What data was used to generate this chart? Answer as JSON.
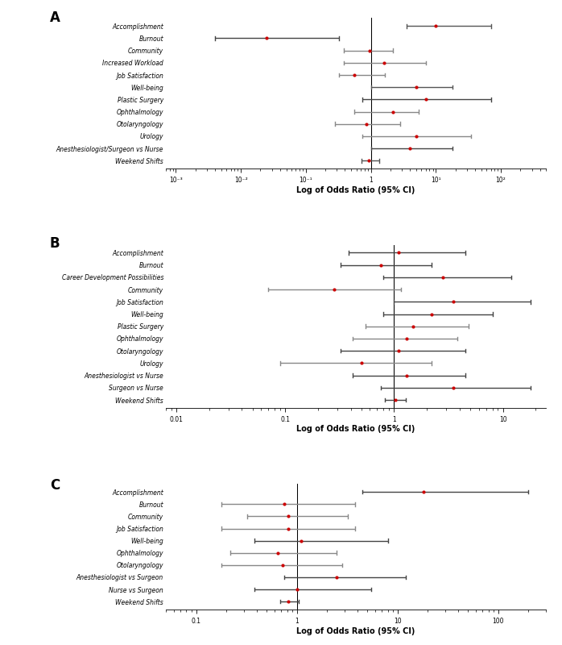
{
  "panel_A": {
    "title": "A",
    "labels": [
      "Accomplishment",
      "Burnout",
      "Community",
      "Increased Workload",
      "Job Satisfaction",
      "Well-being",
      "Plastic Surgery",
      "Ophthalmology",
      "Otolaryngology",
      "Urology",
      "Anesthesiologist/Surgeon vs Nurse",
      "Weekend Shifts"
    ],
    "or": [
      10.0,
      0.025,
      0.95,
      1.6,
      0.55,
      5.0,
      7.0,
      2.2,
      0.85,
      5.0,
      4.0,
      0.93
    ],
    "ci_low": [
      3.5,
      0.004,
      0.38,
      0.38,
      0.32,
      1.0,
      0.75,
      0.55,
      0.28,
      0.75,
      1.0,
      0.72
    ],
    "ci_high": [
      70.0,
      0.32,
      2.2,
      7.0,
      1.65,
      18.0,
      70.0,
      5.5,
      2.8,
      35.0,
      18.0,
      1.35
    ],
    "xmin": 0.0007,
    "xmax": 500.0,
    "xticks": [
      0.001,
      0.01,
      0.1,
      1.0,
      10.0,
      100.0
    ],
    "xtick_labels": [
      "10⁻³",
      "10⁻²",
      "10⁻¹",
      "1",
      "10¹",
      "10²"
    ],
    "vline": 1.0,
    "xlabel": "Log of Odds Ratio (95% CI)",
    "colors": [
      "#555555",
      "#444444",
      "#888888",
      "#888888",
      "#888888",
      "#555555",
      "#444444",
      "#888888",
      "#888888",
      "#888888",
      "#444444",
      "#555555"
    ]
  },
  "panel_B": {
    "title": "B",
    "labels": [
      "Accomplishment",
      "Burnout",
      "Career Development Possibilities",
      "Community",
      "Job Satisfaction",
      "Well-being",
      "Plastic Surgery",
      "Ophthalmology",
      "Otolaryngology",
      "Urology",
      "Anesthesiologist vs Nurse",
      "Surgeon vs Nurse",
      "Weekend Shifts"
    ],
    "or": [
      1.1,
      0.75,
      2.8,
      0.28,
      3.5,
      2.2,
      1.5,
      1.3,
      1.1,
      0.5,
      1.3,
      3.5,
      1.02
    ],
    "ci_low": [
      0.38,
      0.32,
      0.8,
      0.07,
      1.0,
      0.8,
      0.55,
      0.42,
      0.32,
      0.09,
      0.42,
      0.75,
      0.82
    ],
    "ci_high": [
      4.5,
      2.2,
      12.0,
      1.15,
      18.0,
      8.0,
      4.8,
      3.8,
      4.5,
      2.2,
      4.5,
      18.0,
      1.28
    ],
    "xmin": 0.008,
    "xmax": 25.0,
    "xticks": [
      0.01,
      0.1,
      1.0,
      10.0
    ],
    "xtick_labels": [
      "0.01",
      "0.1",
      "1",
      "10"
    ],
    "vline": 1.0,
    "xlabel": "Log of Odds Ratio (95% CI)",
    "colors": [
      "#444444",
      "#444444",
      "#444444",
      "#888888",
      "#444444",
      "#444444",
      "#888888",
      "#888888",
      "#444444",
      "#888888",
      "#444444",
      "#444444",
      "#444444"
    ]
  },
  "panel_C": {
    "title": "C",
    "labels": [
      "Accomplishment",
      "Burnout",
      "Community",
      "Job Satisfaction",
      "Well-being",
      "Ophthalmology",
      "Otolaryngology",
      "Anesthesiologist vs Surgeon",
      "Nurse vs Surgeon",
      "Weekend Shifts"
    ],
    "or": [
      18.0,
      0.75,
      0.82,
      0.82,
      1.1,
      0.65,
      0.72,
      2.5,
      1.0,
      0.82
    ],
    "ci_low": [
      4.5,
      0.18,
      0.32,
      0.18,
      0.38,
      0.22,
      0.18,
      0.75,
      0.38,
      0.68
    ],
    "ci_high": [
      200.0,
      3.8,
      3.2,
      3.8,
      8.0,
      2.5,
      2.8,
      12.0,
      5.5,
      1.05
    ],
    "xmin": 0.05,
    "xmax": 300.0,
    "xticks": [
      0.1,
      1.0,
      10.0,
      100.0
    ],
    "xtick_labels": [
      "0.1",
      "1",
      "10",
      "100"
    ],
    "vline": 1.0,
    "xlabel": "Log of Odds Ratio (95% CI)",
    "colors": [
      "#444444",
      "#888888",
      "#888888",
      "#888888",
      "#444444",
      "#888888",
      "#888888",
      "#444444",
      "#444444",
      "#444444"
    ]
  },
  "dot_color": "#cc0000",
  "background_color": "#ffffff",
  "label_fontsize": 5.5,
  "tick_fontsize": 5.5,
  "axis_label_fontsize": 7.0,
  "title_fontsize": 12
}
